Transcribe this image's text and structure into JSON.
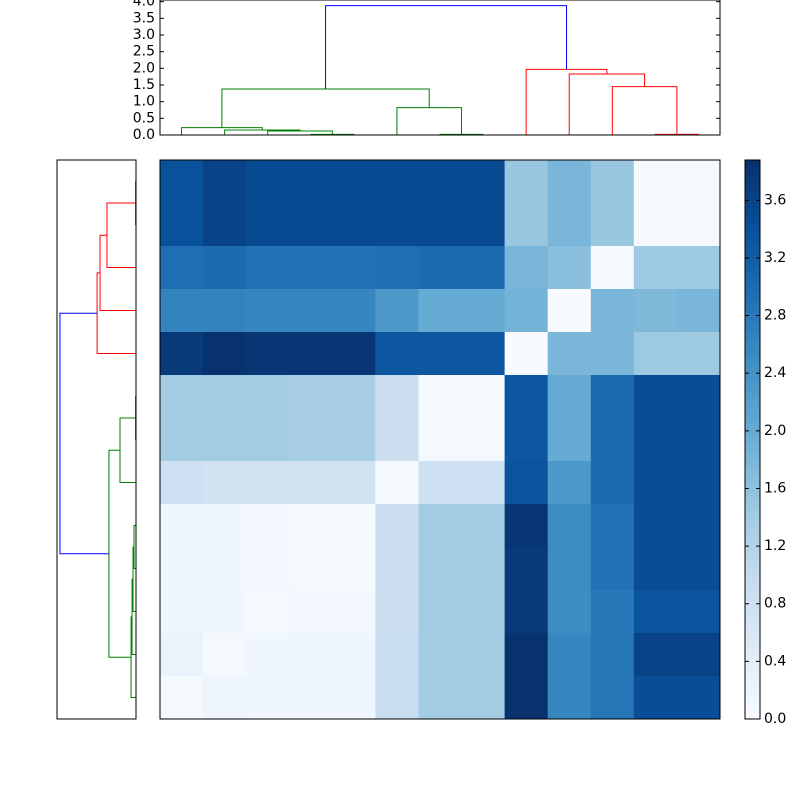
{
  "chart_data": {
    "type": "clustered-heatmap",
    "matrix": [
      [
        3.4,
        3.6,
        3.5,
        3.5,
        3.5,
        3.5,
        3.5,
        3.5,
        1.5,
        1.8,
        1.5,
        0.05,
        0.05
      ],
      [
        3.4,
        3.6,
        3.5,
        3.5,
        3.5,
        3.5,
        3.5,
        3.5,
        1.5,
        1.8,
        1.5,
        0.05,
        0.05
      ],
      [
        2.95,
        3.0,
        2.9,
        2.9,
        2.9,
        2.95,
        3.0,
        3.0,
        1.8,
        1.65,
        0.05,
        1.45,
        1.45
      ],
      [
        2.65,
        2.65,
        2.6,
        2.6,
        2.6,
        2.3,
        2.0,
        2.0,
        1.85,
        0.0,
        1.8,
        1.75,
        1.8
      ],
      [
        3.75,
        3.85,
        3.8,
        3.8,
        3.8,
        3.3,
        3.3,
        3.3,
        0.0,
        1.8,
        1.8,
        1.45,
        1.45
      ],
      [
        1.4,
        1.4,
        1.4,
        1.35,
        1.35,
        0.85,
        0.05,
        0.05,
        3.3,
        2.0,
        3.0,
        3.45,
        3.45
      ],
      [
        1.4,
        1.4,
        1.4,
        1.35,
        1.35,
        0.85,
        0.05,
        0.05,
        3.3,
        2.0,
        3.0,
        3.45,
        3.45
      ],
      [
        0.8,
        0.75,
        0.75,
        0.75,
        0.75,
        0.05,
        0.8,
        0.8,
        3.35,
        2.3,
        3.0,
        3.45,
        3.45
      ],
      [
        0.15,
        0.15,
        0.1,
        0.05,
        0.05,
        0.85,
        1.4,
        1.4,
        3.8,
        2.5,
        2.9,
        3.45,
        3.45
      ],
      [
        0.15,
        0.15,
        0.1,
        0.05,
        0.05,
        0.85,
        1.4,
        1.4,
        3.75,
        2.5,
        2.9,
        3.45,
        3.45
      ],
      [
        0.15,
        0.15,
        0.05,
        0.1,
        0.1,
        0.85,
        1.4,
        1.4,
        3.75,
        2.5,
        2.8,
        3.35,
        3.35
      ],
      [
        0.25,
        0.05,
        0.15,
        0.15,
        0.15,
        0.9,
        1.4,
        1.4,
        3.85,
        2.6,
        2.85,
        3.6,
        3.6
      ],
      [
        0.05,
        0.2,
        0.15,
        0.15,
        0.15,
        0.9,
        1.4,
        1.4,
        3.85,
        2.6,
        2.85,
        3.45,
        3.45
      ]
    ],
    "colormap": [
      "#f7fbff",
      "#deebf7",
      "#c6dbef",
      "#9ecae1",
      "#6baed6",
      "#4292c6",
      "#2171b5",
      "#08519c",
      "#08306b"
    ],
    "clim": [
      0,
      3.88
    ],
    "colorbar_ticks": [
      {
        "value": 0,
        "label": "0.0"
      },
      {
        "value": 0.4,
        "label": "0.4"
      },
      {
        "value": 0.8,
        "label": "0.8"
      },
      {
        "value": 1.2,
        "label": "1.2"
      },
      {
        "value": 1.6,
        "label": "1.6"
      },
      {
        "value": 2.0,
        "label": "2.0"
      },
      {
        "value": 2.4,
        "label": "2.4"
      },
      {
        "value": 2.8,
        "label": "2.8"
      },
      {
        "value": 3.2,
        "label": "3.2"
      },
      {
        "value": 3.6,
        "label": "3.6"
      }
    ],
    "dendrogram_top": {
      "xlim": [
        0,
        130
      ],
      "ylim": [
        0,
        4.05
      ],
      "yticks": [
        {
          "value": 0,
          "label": "0.0"
        },
        {
          "value": 0.5,
          "label": "0.5"
        },
        {
          "value": 1.0,
          "label": "1.0"
        },
        {
          "value": 1.5,
          "label": "1.5"
        },
        {
          "value": 2.0,
          "label": "2.0"
        },
        {
          "value": 2.5,
          "label": "2.5"
        },
        {
          "value": 3.0,
          "label": "3.0"
        },
        {
          "value": 3.5,
          "label": "3.5"
        },
        {
          "value": 4.0,
          "label": "4.0"
        }
      ],
      "links": [
        {
          "x": [
            35,
            35,
            45,
            45
          ],
          "y": [
            0,
            0.02,
            0.02,
            0
          ],
          "color": "#008000"
        },
        {
          "x": [
            25,
            25,
            40,
            40
          ],
          "y": [
            0,
            0.12,
            0.12,
            0.02
          ],
          "color": "#008000"
        },
        {
          "x": [
            15,
            15,
            32.5,
            32.5
          ],
          "y": [
            0,
            0.15,
            0.15,
            0.12
          ],
          "color": "#008000"
        },
        {
          "x": [
            5,
            5,
            23.75,
            23.75
          ],
          "y": [
            0,
            0.22,
            0.22,
            0.15
          ],
          "color": "#008000"
        },
        {
          "x": [
            65,
            65,
            75,
            75
          ],
          "y": [
            0,
            0.02,
            0.02,
            0
          ],
          "color": "#008000"
        },
        {
          "x": [
            55,
            55,
            70,
            70
          ],
          "y": [
            0,
            0.82,
            0.82,
            0.02
          ],
          "color": "#008000"
        },
        {
          "x": [
            14.375,
            14.375,
            62.5,
            62.5
          ],
          "y": [
            0.22,
            1.38,
            1.38,
            0.82
          ],
          "color": "#008000"
        },
        {
          "x": [
            115,
            115,
            125,
            125
          ],
          "y": [
            0,
            0.02,
            0.02,
            0
          ],
          "color": "#ff0000"
        },
        {
          "x": [
            105,
            105,
            120,
            120
          ],
          "y": [
            0,
            1.45,
            1.45,
            0.02
          ],
          "color": "#ff0000"
        },
        {
          "x": [
            95,
            95,
            112.5,
            112.5
          ],
          "y": [
            0,
            1.83,
            1.83,
            1.45
          ],
          "color": "#ff0000"
        },
        {
          "x": [
            85,
            85,
            103.75,
            103.75
          ],
          "y": [
            0,
            1.97,
            1.97,
            1.83
          ],
          "color": "#ff0000"
        },
        {
          "x": [
            38.4375,
            38.4375,
            94.375,
            94.375
          ],
          "y": [
            1.38,
            3.88,
            3.88,
            1.97
          ],
          "color": "#0000ff"
        }
      ]
    },
    "dendrogram_left": {
      "ylim": [
        0,
        130
      ],
      "xlim": [
        4.0,
        0
      ],
      "links": [
        {
          "y": [
            5,
            5,
            15,
            15
          ],
          "x": [
            0,
            0.02,
            0.02,
            0
          ],
          "color": "#ff0000"
        },
        {
          "y": [
            10,
            10,
            25,
            25
          ],
          "x": [
            0.02,
            1.47,
            1.47,
            0
          ],
          "color": "#ff0000"
        },
        {
          "y": [
            17.5,
            17.5,
            35,
            35
          ],
          "x": [
            1.47,
            1.82,
            1.82,
            0
          ],
          "color": "#ff0000"
        },
        {
          "y": [
            26.25,
            26.25,
            45,
            45
          ],
          "x": [
            1.82,
            1.97,
            1.97,
            0
          ],
          "color": "#ff0000"
        },
        {
          "y": [
            55,
            55,
            65,
            65
          ],
          "x": [
            0,
            0.02,
            0.02,
            0
          ],
          "color": "#008000"
        },
        {
          "y": [
            60,
            60,
            75,
            75
          ],
          "x": [
            0.02,
            0.81,
            0.81,
            0
          ],
          "color": "#008000"
        },
        {
          "y": [
            85,
            85,
            95,
            95
          ],
          "x": [
            0,
            0.1,
            0.1,
            0
          ],
          "color": "#008000"
        },
        {
          "y": [
            90,
            90,
            105,
            105
          ],
          "x": [
            0.1,
            0.15,
            0.15,
            0
          ],
          "color": "#008000"
        },
        {
          "y": [
            97.5,
            97.5,
            115,
            115
          ],
          "x": [
            0.15,
            0.2,
            0.2,
            0
          ],
          "color": "#008000"
        },
        {
          "y": [
            106.25,
            106.25,
            125,
            125
          ],
          "x": [
            0.2,
            0.25,
            0.25,
            0
          ],
          "color": "#008000"
        },
        {
          "y": [
            67.5,
            67.5,
            115.625,
            115.625
          ],
          "x": [
            0.81,
            1.37,
            1.37,
            0.25
          ],
          "color": "#008000"
        },
        {
          "y": [
            35.625,
            35.625,
            91.5625,
            91.5625
          ],
          "x": [
            1.97,
            3.85,
            3.85,
            1.37
          ],
          "color": "#0000ff"
        }
      ]
    }
  }
}
